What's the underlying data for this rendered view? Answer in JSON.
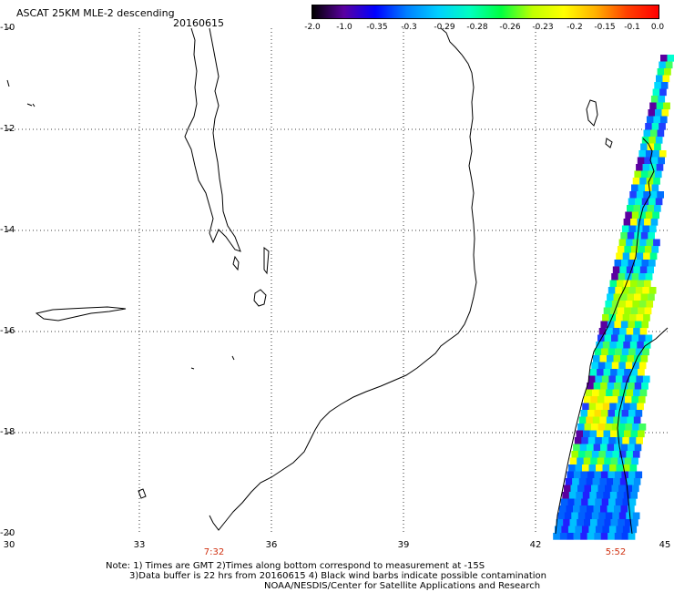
{
  "header": {
    "title": "ASCAT 25KM MLE-2 descending",
    "date": "20160615"
  },
  "colorbar": {
    "labels": [
      "-2.0",
      "-1.0",
      "-0.35",
      "-0.3",
      "-0.29",
      "-0.28",
      "-0.26",
      "-0.23",
      "-0.2",
      "-0.15",
      "-0.1",
      "0.0"
    ],
    "colors": [
      "#000000",
      "#5a00a0",
      "#0000ff",
      "#0080ff",
      "#00d0ff",
      "#00ffc0",
      "#00ff40",
      "#c0ff00",
      "#ffff00",
      "#ffb000",
      "#ff4000",
      "#ff0000"
    ]
  },
  "axes": {
    "lat_ticks": [
      "-10",
      "-12",
      "-14",
      "-16",
      "-18",
      "-20"
    ],
    "lon_ticks": [
      "30",
      "33",
      "36",
      "39",
      "42",
      "45"
    ]
  },
  "time_labels": [
    "7:32",
    "5:52"
  ],
  "notes": {
    "line1": "Note: 1) Times are GMT 2)Times along bottom correspond to measurement at -15S",
    "line2": "3)Data buffer is 22 hrs from 20160615 4) Black wind barbs indicate possible contamination",
    "line3": "NOAA/NESDIS/Center for Satellite Applications and Research"
  }
}
